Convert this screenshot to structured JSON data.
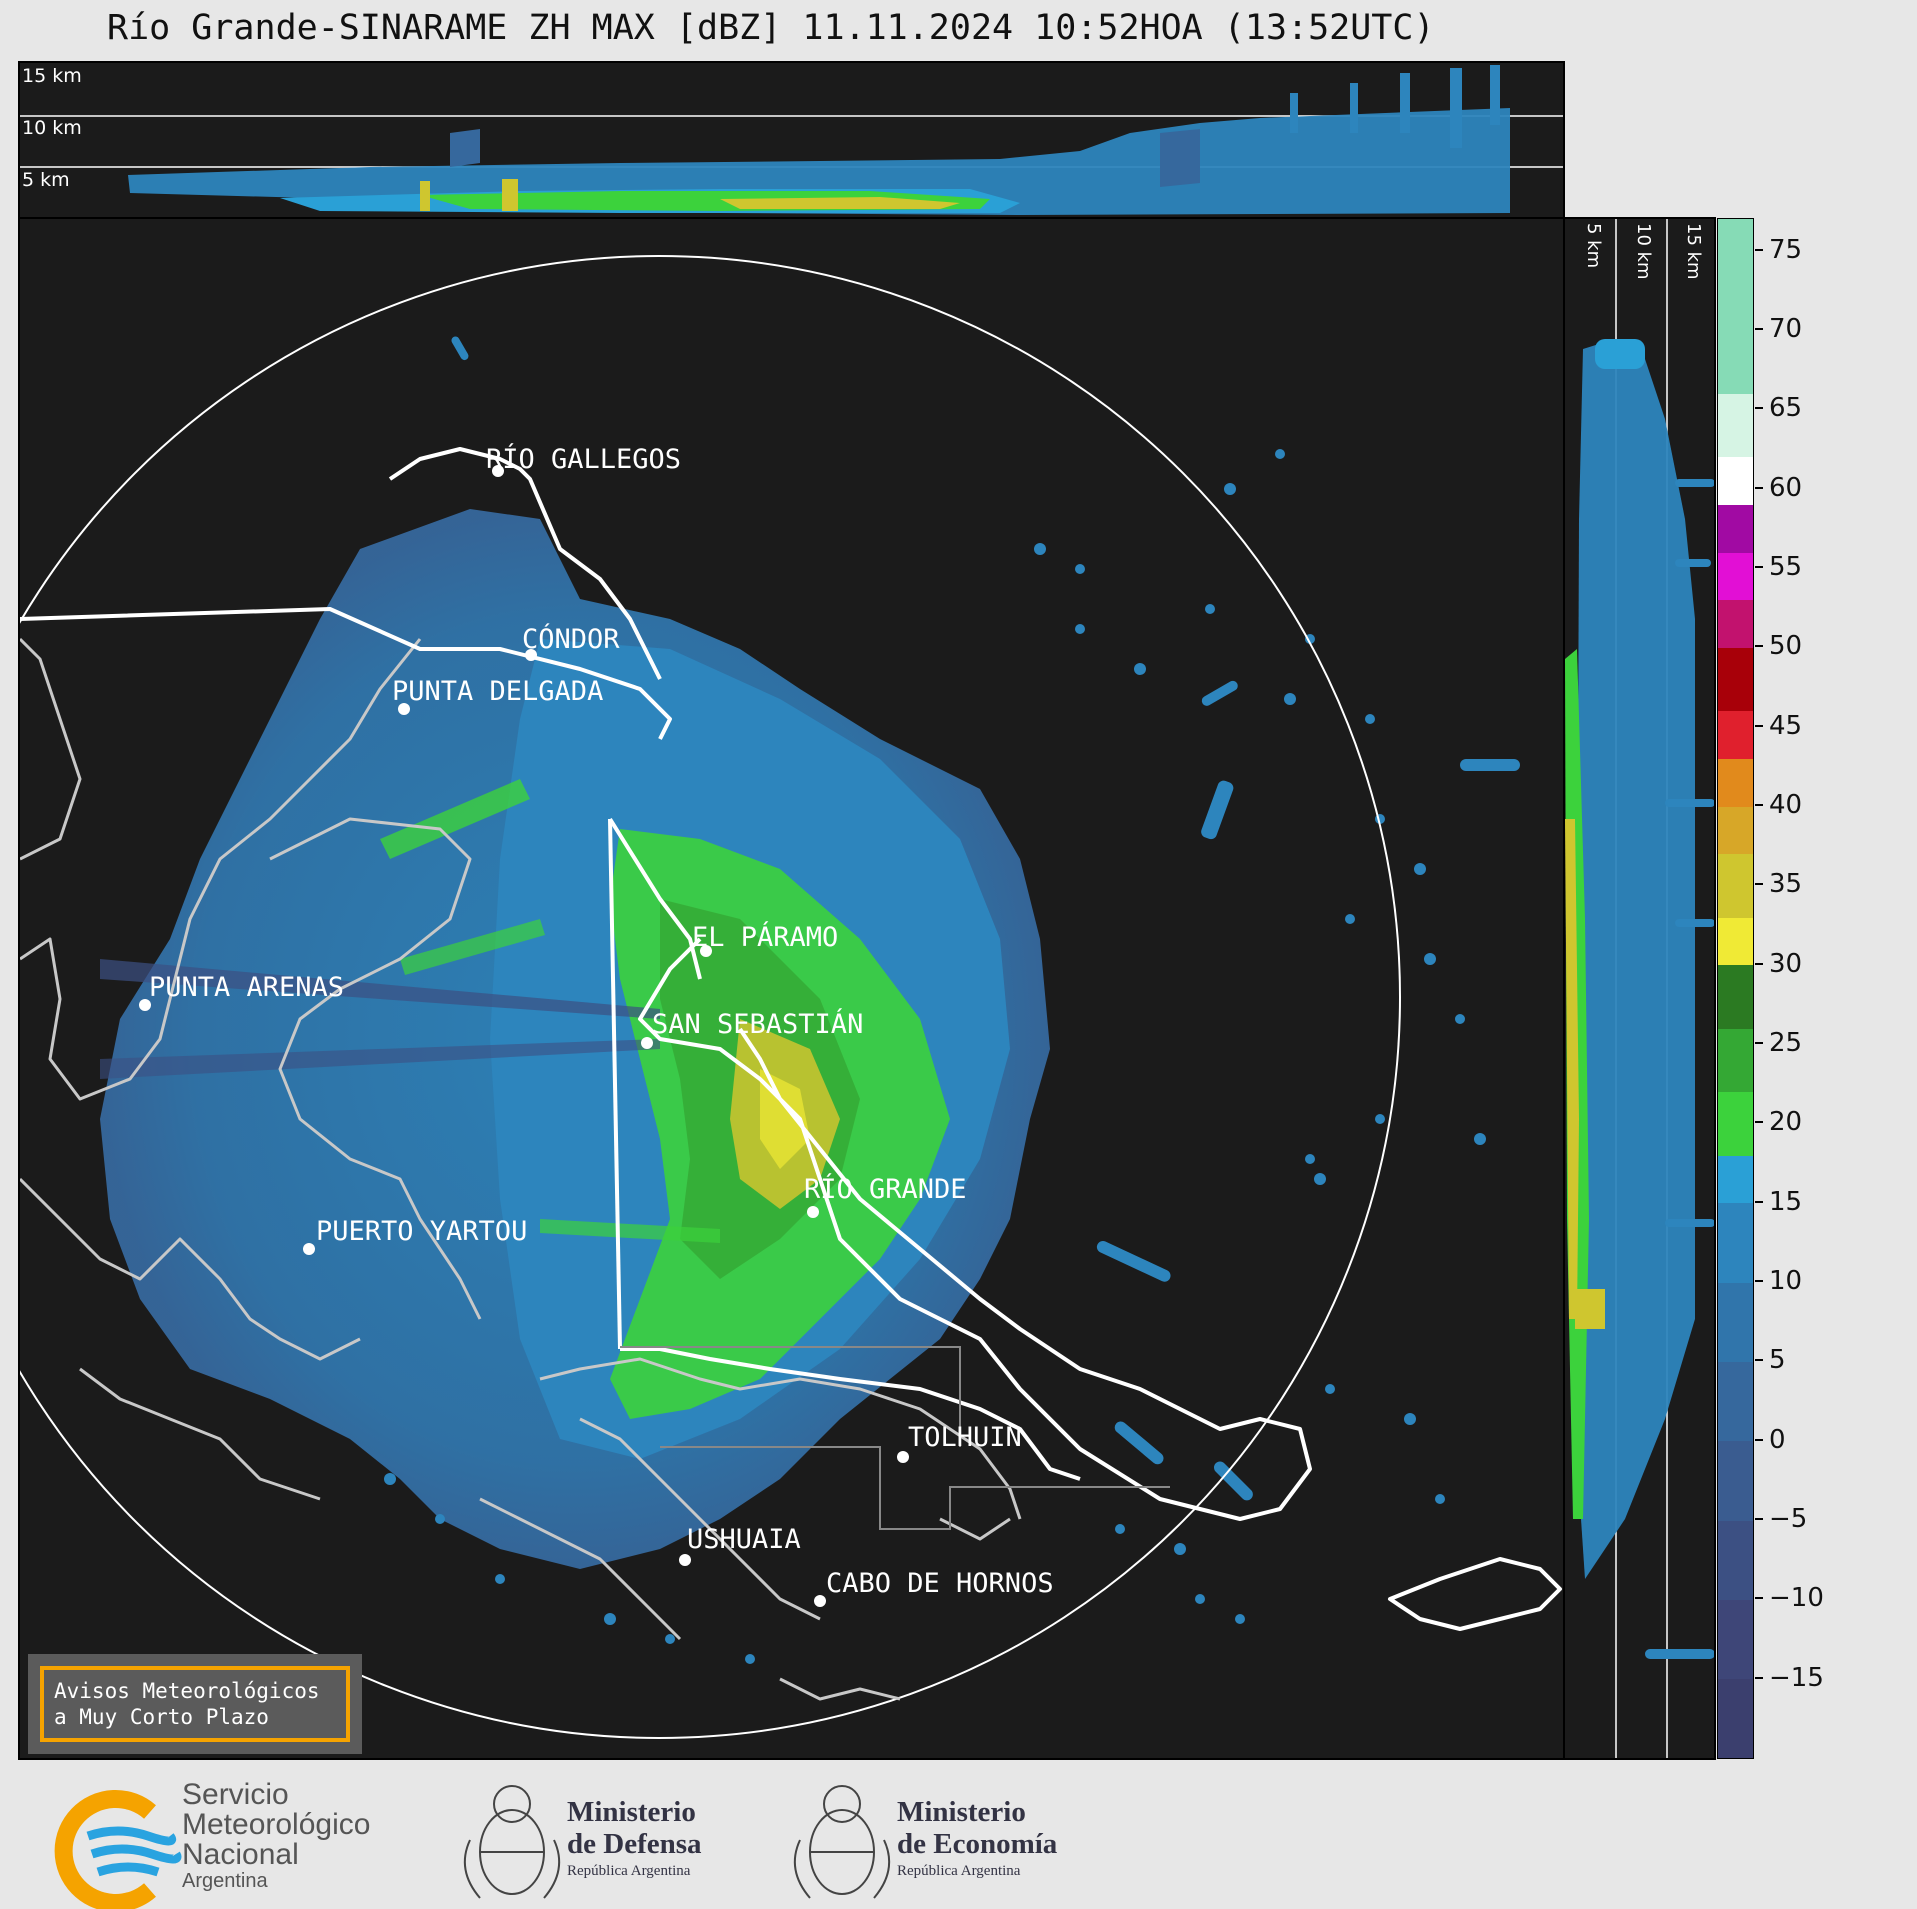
{
  "title": "Río Grande-SINARAME ZH MAX [dBZ] 11.11.2024 10:52HOA (13:52UTC)",
  "top_profile": {
    "height_labels": [
      "15 km",
      "10 km",
      "5 km"
    ]
  },
  "side_profile": {
    "height_labels": [
      "5 km",
      "10 km",
      "15 km"
    ]
  },
  "cities": [
    {
      "name": "RÍO GALLEGOS"
    },
    {
      "name": "CÓNDOR"
    },
    {
      "name": "PUNTA DELGADA"
    },
    {
      "name": "EL PÁRAMO"
    },
    {
      "name": "PUNTA ARENAS"
    },
    {
      "name": "SAN SEBASTIÁN"
    },
    {
      "name": "RÍO GRANDE"
    },
    {
      "name": "PUERTO YARTOU"
    },
    {
      "name": "TOLHUIN"
    },
    {
      "name": "USHUAIA"
    },
    {
      "name": "CABO DE HORNOS"
    }
  ],
  "colorbar": {
    "unit": "dBZ",
    "min": -20,
    "max": 77,
    "ticks": [
      "75",
      "70",
      "65",
      "60",
      "55",
      "50",
      "45",
      "40",
      "35",
      "30",
      "25",
      "20",
      "15",
      "10",
      "5",
      "0",
      "−5",
      "−10",
      "−15"
    ],
    "tick_values": [
      75,
      70,
      65,
      60,
      55,
      50,
      45,
      40,
      35,
      30,
      25,
      20,
      15,
      10,
      5,
      0,
      -5,
      -10,
      -15
    ],
    "bands": [
      {
        "from": -20,
        "to": -15,
        "color": "#3b3f6e"
      },
      {
        "from": -15,
        "to": -10,
        "color": "#3e4678"
      },
      {
        "from": -10,
        "to": -5,
        "color": "#3c5083"
      },
      {
        "from": -5,
        "to": 0,
        "color": "#3a5c90"
      },
      {
        "from": 0,
        "to": 5,
        "color": "#36689d"
      },
      {
        "from": 5,
        "to": 10,
        "color": "#3075ab"
      },
      {
        "from": 10,
        "to": 15,
        "color": "#2d85bd"
      },
      {
        "from": 15,
        "to": 18,
        "color": "#2aa0d6"
      },
      {
        "from": 18,
        "to": 22,
        "color": "#3cd23c"
      },
      {
        "from": 22,
        "to": 26,
        "color": "#34a834"
      },
      {
        "from": 26,
        "to": 30,
        "color": "#2b7a22"
      },
      {
        "from": 30,
        "to": 33,
        "color": "#f0ea35"
      },
      {
        "from": 33,
        "to": 37,
        "color": "#cfc62f"
      },
      {
        "from": 37,
        "to": 40,
        "color": "#d7a728"
      },
      {
        "from": 40,
        "to": 43,
        "color": "#e18a1c"
      },
      {
        "from": 43,
        "to": 46,
        "color": "#e0202d"
      },
      {
        "from": 46,
        "to": 50,
        "color": "#a80009"
      },
      {
        "from": 50,
        "to": 53,
        "color": "#c2126e"
      },
      {
        "from": 53,
        "to": 56,
        "color": "#e20fd5"
      },
      {
        "from": 56,
        "to": 59,
        "color": "#a10aa3"
      },
      {
        "from": 59,
        "to": 62,
        "color": "#ffffff"
      },
      {
        "from": 62,
        "to": 66,
        "color": "#d6f4e4"
      },
      {
        "from": 66,
        "to": 77,
        "color": "#86dbb6"
      }
    ]
  },
  "warning_box": {
    "line1": "Avisos Meteorológicos",
    "line2": "a Muy Corto Plazo"
  },
  "logos": {
    "smn": {
      "line1": "Servicio",
      "line2": "Meteorológico",
      "line3": "Nacional",
      "line4": "Argentina"
    },
    "defensa": {
      "line1": "Ministerio",
      "line2": "de Defensa",
      "line3": "República Argentina"
    },
    "economia": {
      "line1": "Ministerio",
      "line2": "de Economía",
      "line3": "República Argentina"
    }
  },
  "colors": {
    "background": "#1b1b1b",
    "coast": "#c8c8c8",
    "border": "#ffffff",
    "accent": "#f5a300"
  }
}
